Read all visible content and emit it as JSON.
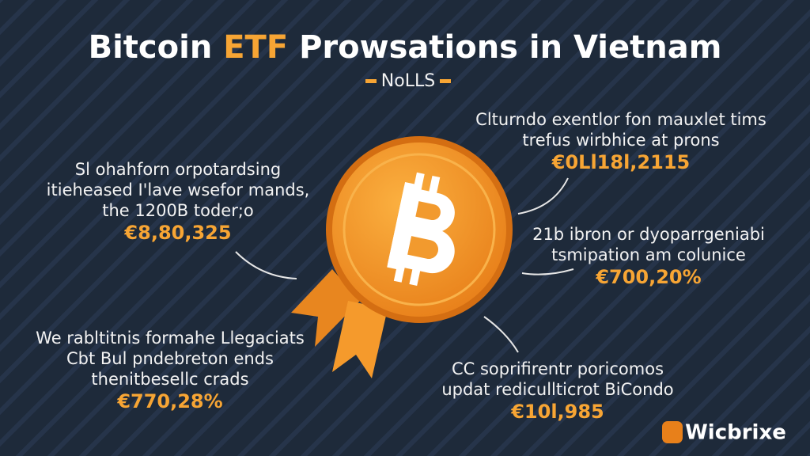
{
  "header": {
    "title": {
      "pre": "Bitcoin ",
      "highlight": "ETF",
      "post": " Prowsations in Vietnam"
    },
    "subtitle": "NoLLS"
  },
  "callouts": [
    {
      "lines": [
        "Sl ohahforn orpotardsing",
        "itieheased I'lave wsefor mands,",
        "the 1200B toder;o"
      ],
      "value": "€8,80,325"
    },
    {
      "lines": [
        "Clturndo exentlor fon mauxlet tims",
        "trefus wirbhice at prons"
      ],
      "value": "€0Ll18l,2115"
    },
    {
      "lines": [
        "21b ibron or dyoparrgeniabi",
        "tsmipation am colunice"
      ],
      "value": "€700,20%"
    },
    {
      "lines": [
        "We rabltitnis formahe Llegaciats",
        "Cbt Bul pndebreton ends",
        "thenitbesellc crads"
      ],
      "value": "€770,28%"
    },
    {
      "lines": [
        "CC soprifirentr poricomos",
        "updat redicullticrot BiCondo"
      ],
      "value": "€10l,985"
    }
  ],
  "logo": "Wicbrixe"
}
